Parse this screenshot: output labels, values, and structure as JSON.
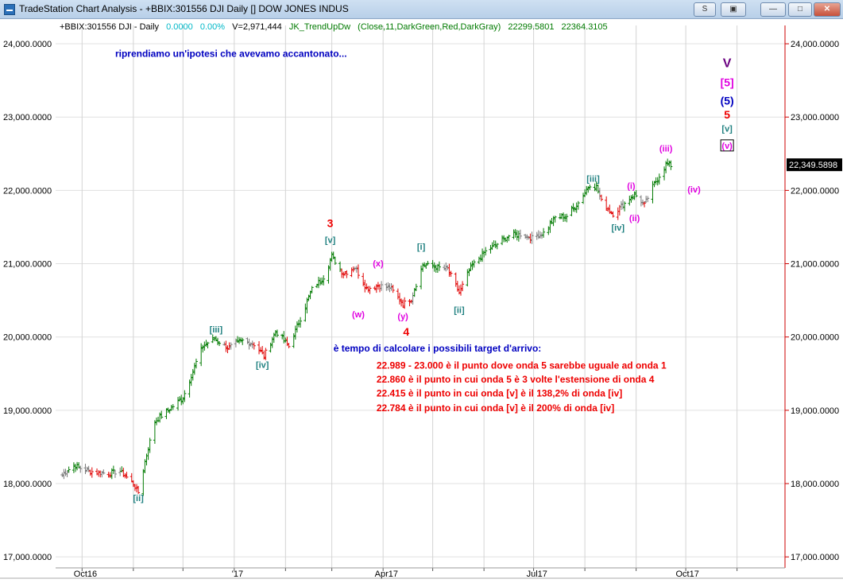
{
  "window": {
    "title": "TradeStation Chart Analysis - +BBIX:301556 DJI Daily [] DOW JONES INDUS",
    "btn_link": "S",
    "btn_pin": "▣"
  },
  "infobar": {
    "symbol": "+BBIX:301556 DJI - Daily",
    "change": "0.0000",
    "change_pct": "0.00%",
    "volume": "V=2,971,444",
    "indicator": "JK_TrendUpDw",
    "indicator_params": "(Close,11,DarkGreen,Red,DarkGray)",
    "value1": "22299.5801",
    "value2": "22364.3105"
  },
  "colors": {
    "up": "#007a00",
    "down": "#e00000",
    "neutral": "#777777",
    "axis": "#cc0000",
    "teal": "#1f8080",
    "magenta": "#e000e0",
    "navy": "#0000c0",
    "purple": "#6a0080",
    "red": "#ee0000"
  },
  "chart_data": {
    "type": "bar",
    "subtype": "ohlc-price-chart",
    "ylim": [
      16850,
      24250
    ],
    "y_ticks": [
      "24,000.0000",
      "23,000.0000",
      "22,000.0000",
      "21,000.0000",
      "20,000.0000",
      "19,000.0000",
      "18,000.0000",
      "17,000.0000"
    ],
    "y_tick_values": [
      24000,
      23000,
      22000,
      21000,
      20000,
      19000,
      18000,
      17000
    ],
    "x_tick_labels": [
      "Oct16",
      "'17",
      "Apr17",
      "Jul17",
      "Oct17"
    ],
    "x_tick_dates": [
      "2016-10-03",
      "2017-01-03",
      "2017-04-03",
      "2017-07-03",
      "2017-10-02"
    ],
    "x_range": [
      "2016-09-15",
      "2017-11-30"
    ],
    "last_price_label": "22,349.5898",
    "last_price": 22349.59,
    "price_path": [
      [
        "2016-09-19",
        18120
      ],
      [
        "2016-09-26",
        18250
      ],
      [
        "2016-10-03",
        18180
      ],
      [
        "2016-10-10",
        18150
      ],
      [
        "2016-10-17",
        18140
      ],
      [
        "2016-10-24",
        18170
      ],
      [
        "2016-11-01",
        18000
      ],
      [
        "2016-11-04",
        17880
      ],
      [
        "2016-11-08",
        18300
      ],
      [
        "2016-11-14",
        18850
      ],
      [
        "2016-11-22",
        19000
      ],
      [
        "2016-12-01",
        19170
      ],
      [
        "2016-12-08",
        19600
      ],
      [
        "2016-12-13",
        19880
      ],
      [
        "2016-12-20",
        19980
      ],
      [
        "2016-12-28",
        19850
      ],
      [
        "2017-01-06",
        19950
      ],
      [
        "2017-01-13",
        19900
      ],
      [
        "2017-01-19",
        19740
      ],
      [
        "2017-01-26",
        20080
      ],
      [
        "2017-02-03",
        19870
      ],
      [
        "2017-02-10",
        20250
      ],
      [
        "2017-02-17",
        20650
      ],
      [
        "2017-02-24",
        20820
      ],
      [
        "2017-03-01",
        21100
      ],
      [
        "2017-03-08",
        20860
      ],
      [
        "2017-03-15",
        20950
      ],
      [
        "2017-03-22",
        20660
      ],
      [
        "2017-03-29",
        20700
      ],
      [
        "2017-04-05",
        20680
      ],
      [
        "2017-04-13",
        20450
      ],
      [
        "2017-04-18",
        20520
      ],
      [
        "2017-04-25",
        20990
      ],
      [
        "2017-05-03",
        20950
      ],
      [
        "2017-05-10",
        20930
      ],
      [
        "2017-05-17",
        20600
      ],
      [
        "2017-05-24",
        20950
      ],
      [
        "2017-06-01",
        21150
      ],
      [
        "2017-06-09",
        21270
      ],
      [
        "2017-06-16",
        21380
      ],
      [
        "2017-06-23",
        21400
      ],
      [
        "2017-06-30",
        21350
      ],
      [
        "2017-07-07",
        21420
      ],
      [
        "2017-07-14",
        21630
      ],
      [
        "2017-07-21",
        21650
      ],
      [
        "2017-07-28",
        21830
      ],
      [
        "2017-08-04",
        22080
      ],
      [
        "2017-08-08",
        22050
      ],
      [
        "2017-08-11",
        21850
      ],
      [
        "2017-08-18",
        21680
      ],
      [
        "2017-08-24",
        21800
      ],
      [
        "2017-08-31",
        21950
      ],
      [
        "2017-09-06",
        21800
      ],
      [
        "2017-09-11",
        22050
      ],
      [
        "2017-09-15",
        22200
      ],
      [
        "2017-09-19",
        22350
      ],
      [
        "2017-09-22",
        22340
      ]
    ],
    "annotations": [
      {
        "text": "riprendiamo un'ipotesi che avevamo accantonato...",
        "color": "navy",
        "size": 12,
        "bold": true,
        "date": "2016-10-21",
        "price": 23820,
        "anchor": "start"
      },
      {
        "text": "V",
        "color": "purple",
        "size": 16,
        "bold": true,
        "date": "2017-10-26",
        "price": 23680,
        "anchor": "middle"
      },
      {
        "text": "[5]",
        "color": "magenta",
        "size": 14,
        "bold": true,
        "date": "2017-10-26",
        "price": 23420,
        "anchor": "middle"
      },
      {
        "text": "(5)",
        "color": "navy",
        "size": 14,
        "bold": true,
        "date": "2017-10-26",
        "price": 23170,
        "anchor": "middle"
      },
      {
        "text": "5",
        "color": "red",
        "size": 14,
        "bold": true,
        "date": "2017-10-26",
        "price": 22980,
        "anchor": "middle"
      },
      {
        "text": "[v]",
        "color": "teal",
        "size": 11,
        "bold": true,
        "date": "2017-10-26",
        "price": 22800,
        "anchor": "middle"
      },
      {
        "text": "(v)",
        "color": "magenta",
        "size": 11,
        "bold": true,
        "date": "2017-10-26",
        "price": 22570,
        "anchor": "middle",
        "boxed": true
      },
      {
        "text": "(iii)",
        "color": "magenta",
        "size": 11,
        "bold": true,
        "date": "2017-09-19",
        "price": 22530,
        "anchor": "middle"
      },
      {
        "text": "(iv)",
        "color": "magenta",
        "size": 11,
        "bold": true,
        "date": "2017-10-06",
        "price": 21970,
        "anchor": "middle"
      },
      {
        "text": "[iii]",
        "color": "teal",
        "size": 11,
        "bold": true,
        "date": "2017-08-06",
        "price": 22120,
        "anchor": "middle"
      },
      {
        "text": "(i)",
        "color": "magenta",
        "size": 11,
        "bold": true,
        "date": "2017-08-29",
        "price": 22020,
        "anchor": "middle"
      },
      {
        "text": "[iv]",
        "color": "teal",
        "size": 11,
        "bold": true,
        "date": "2017-08-21",
        "price": 21450,
        "anchor": "middle"
      },
      {
        "text": "(ii)",
        "color": "magenta",
        "size": 11,
        "bold": true,
        "date": "2017-08-31",
        "price": 21580,
        "anchor": "middle"
      },
      {
        "text": "3",
        "color": "red",
        "size": 14,
        "bold": true,
        "date": "2017-02-28",
        "price": 21500,
        "anchor": "middle"
      },
      {
        "text": "[v]",
        "color": "teal",
        "size": 11,
        "bold": true,
        "date": "2017-02-28",
        "price": 21280,
        "anchor": "middle"
      },
      {
        "text": "(x)",
        "color": "magenta",
        "size": 11,
        "bold": true,
        "date": "2017-03-29",
        "price": 20960,
        "anchor": "middle"
      },
      {
        "text": "(w)",
        "color": "magenta",
        "size": 11,
        "bold": true,
        "date": "2017-03-17",
        "price": 20270,
        "anchor": "middle"
      },
      {
        "text": "(y)",
        "color": "magenta",
        "size": 11,
        "bold": true,
        "date": "2017-04-13",
        "price": 20240,
        "anchor": "middle"
      },
      {
        "text": "4",
        "color": "red",
        "size": 14,
        "bold": true,
        "date": "2017-04-15",
        "price": 20020,
        "anchor": "middle"
      },
      {
        "text": "[i]",
        "color": "teal",
        "size": 11,
        "bold": true,
        "date": "2017-04-24",
        "price": 21190,
        "anchor": "middle"
      },
      {
        "text": "[ii]",
        "color": "teal",
        "size": 11,
        "bold": true,
        "date": "2017-05-17",
        "price": 20330,
        "anchor": "middle"
      },
      {
        "text": "[iii]",
        "color": "teal",
        "size": 11,
        "bold": true,
        "date": "2016-12-21",
        "price": 20060,
        "anchor": "middle"
      },
      {
        "text": "[iv]",
        "color": "teal",
        "size": 11,
        "bold": true,
        "date": "2017-01-18",
        "price": 19580,
        "anchor": "middle"
      },
      {
        "text": "[ii]",
        "color": "teal",
        "size": 11,
        "bold": true,
        "date": "2016-11-04",
        "price": 17760,
        "anchor": "middle"
      },
      {
        "text": "è tempo di calcolare i possibili target d'arrivo:",
        "color": "navy",
        "size": 12,
        "bold": true,
        "date": "2017-03-02",
        "price": 19800,
        "anchor": "start"
      },
      {
        "text": "22.989 - 23.000 è il punto dove onda 5 sarebbe uguale ad onda 1",
        "color": "red",
        "size": 12,
        "bold": true,
        "date": "2017-03-28",
        "price": 19570,
        "anchor": "start"
      },
      {
        "text": "22.860 è il punto in cui onda 5 è 3 volte l'estensione di onda 4",
        "color": "red",
        "size": 12,
        "bold": true,
        "date": "2017-03-28",
        "price": 19380,
        "anchor": "start"
      },
      {
        "text": "22.415 è il punto in cui onda [v] è il 138,2% di onda [iv]",
        "color": "red",
        "size": 12,
        "bold": true,
        "date": "2017-03-28",
        "price": 19190,
        "anchor": "start"
      },
      {
        "text": "22.784 è il punto in cui onda [v] è il 200% di onda [iv]",
        "color": "red",
        "size": 12,
        "bold": true,
        "date": "2017-03-28",
        "price": 18990,
        "anchor": "start"
      }
    ]
  }
}
